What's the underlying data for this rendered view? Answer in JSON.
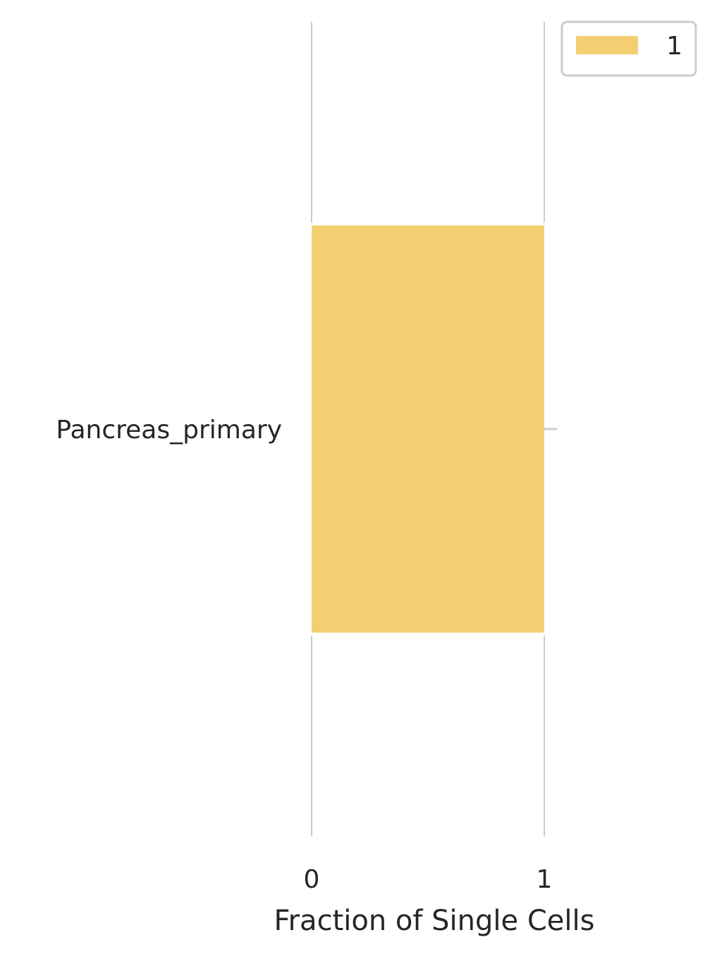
{
  "chart_data": {
    "type": "bar",
    "orientation": "horizontal",
    "stacked": true,
    "categories": [
      "Pancreas_primary"
    ],
    "series": [
      {
        "name": "1",
        "values": [
          1.0
        ],
        "color": "#F4CF72"
      }
    ],
    "xlabel": "Fraction of Single Cells",
    "ylabel": "",
    "xticks": [
      "0",
      "1"
    ],
    "xlim": [
      0,
      1
    ],
    "grid": true,
    "legend": "top-right",
    "grid_color": "#CCCCCC",
    "text_color": "#262626"
  }
}
